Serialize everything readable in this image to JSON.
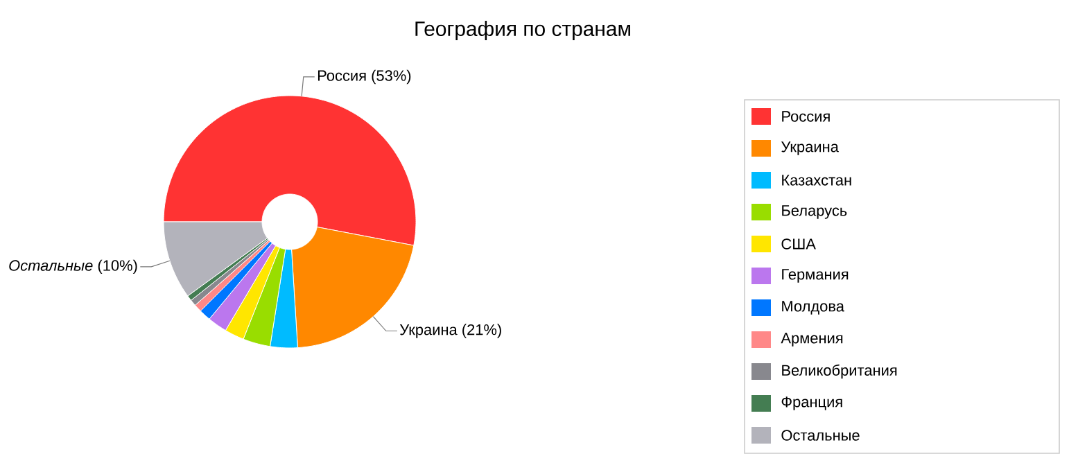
{
  "chart_data": {
    "type": "donut",
    "title": "География по странам",
    "categories": [
      "Россия",
      "Украина",
      "Казахстан",
      "Беларусь",
      "США",
      "Германия",
      "Молдова",
      "Армения",
      "Великобритания",
      "Франция",
      "Остальные"
    ],
    "values": [
      53,
      21,
      3.5,
      3.5,
      2.5,
      2.5,
      1.5,
      1,
      0.8,
      0.7,
      10
    ],
    "colors": [
      "#ff3333",
      "#ff8800",
      "#00bbff",
      "#99dd00",
      "#ffe600",
      "#bb77ee",
      "#0077ff",
      "#ff8888",
      "#88888e",
      "#447d52",
      "#b3b3bb"
    ],
    "value_labels": [
      "Россия (53%)",
      "Украина (21%)",
      null,
      null,
      null,
      null,
      null,
      null,
      null,
      null,
      "*Остальные* (10%)"
    ],
    "legend": "right"
  }
}
